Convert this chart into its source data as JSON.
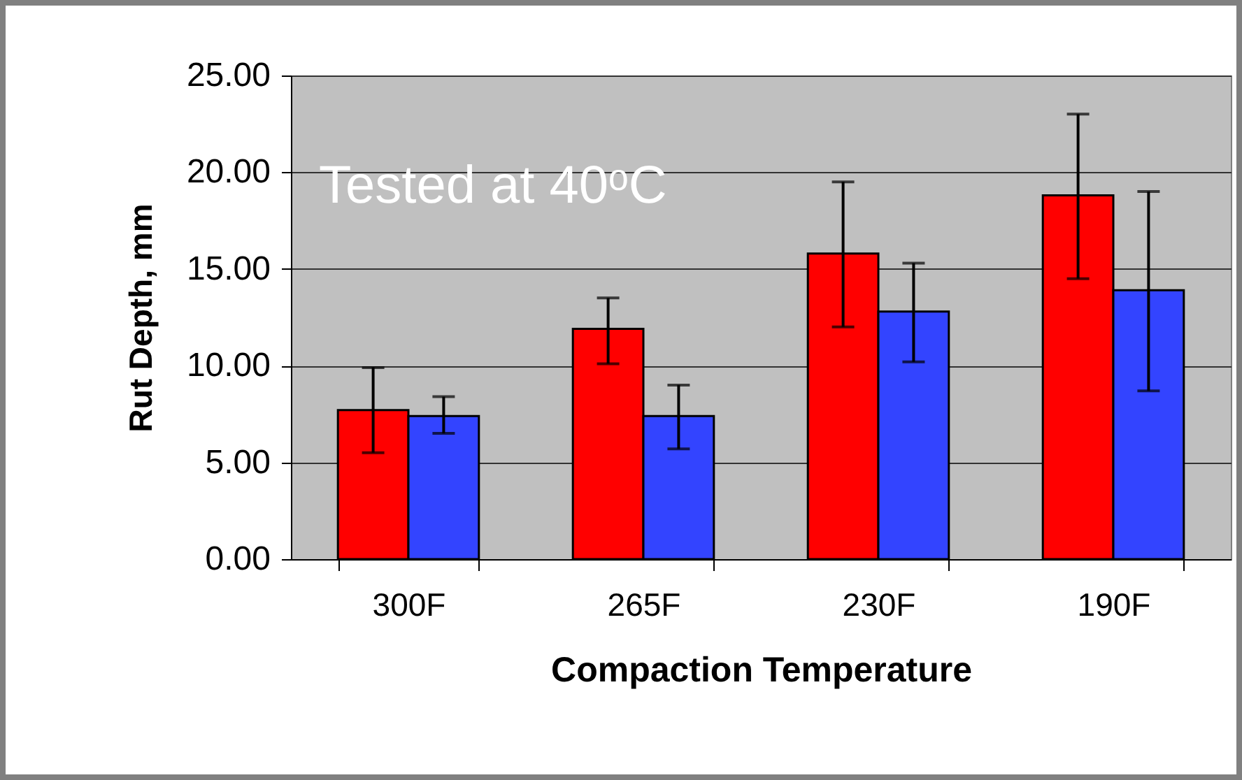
{
  "chart_data": {
    "type": "bar",
    "xlabel": "Compaction Temperature",
    "ylabel": "Rut Depth, mm",
    "annotations": [
      "Tested at 40ᵒC"
    ],
    "categories": [
      "300F",
      "265F",
      "230F",
      "190F"
    ],
    "series": [
      {
        "color": "#ff0000",
        "values": [
          7.7,
          11.9,
          15.8,
          18.8
        ],
        "errors": [
          [
            5.5,
            9.9
          ],
          [
            10.1,
            13.5
          ],
          [
            12.0,
            19.5
          ],
          [
            14.5,
            23.0
          ]
        ]
      },
      {
        "color": "#3344ff",
        "values": [
          7.4,
          7.4,
          12.8,
          13.9
        ],
        "errors": [
          [
            6.5,
            8.4
          ],
          [
            5.7,
            9.0
          ],
          [
            10.2,
            15.3
          ],
          [
            8.7,
            19.0
          ]
        ]
      }
    ],
    "ylim": [
      0,
      25
    ],
    "yticks": [
      {
        "value": 0,
        "label": "0.00"
      },
      {
        "value": 5,
        "label": "5.00"
      },
      {
        "value": 10,
        "label": "10.00"
      },
      {
        "value": 15,
        "label": "15.00"
      },
      {
        "value": 20,
        "label": "20.00"
      },
      {
        "value": 25,
        "label": "25.00"
      }
    ],
    "grid": "y",
    "legend": false
  }
}
